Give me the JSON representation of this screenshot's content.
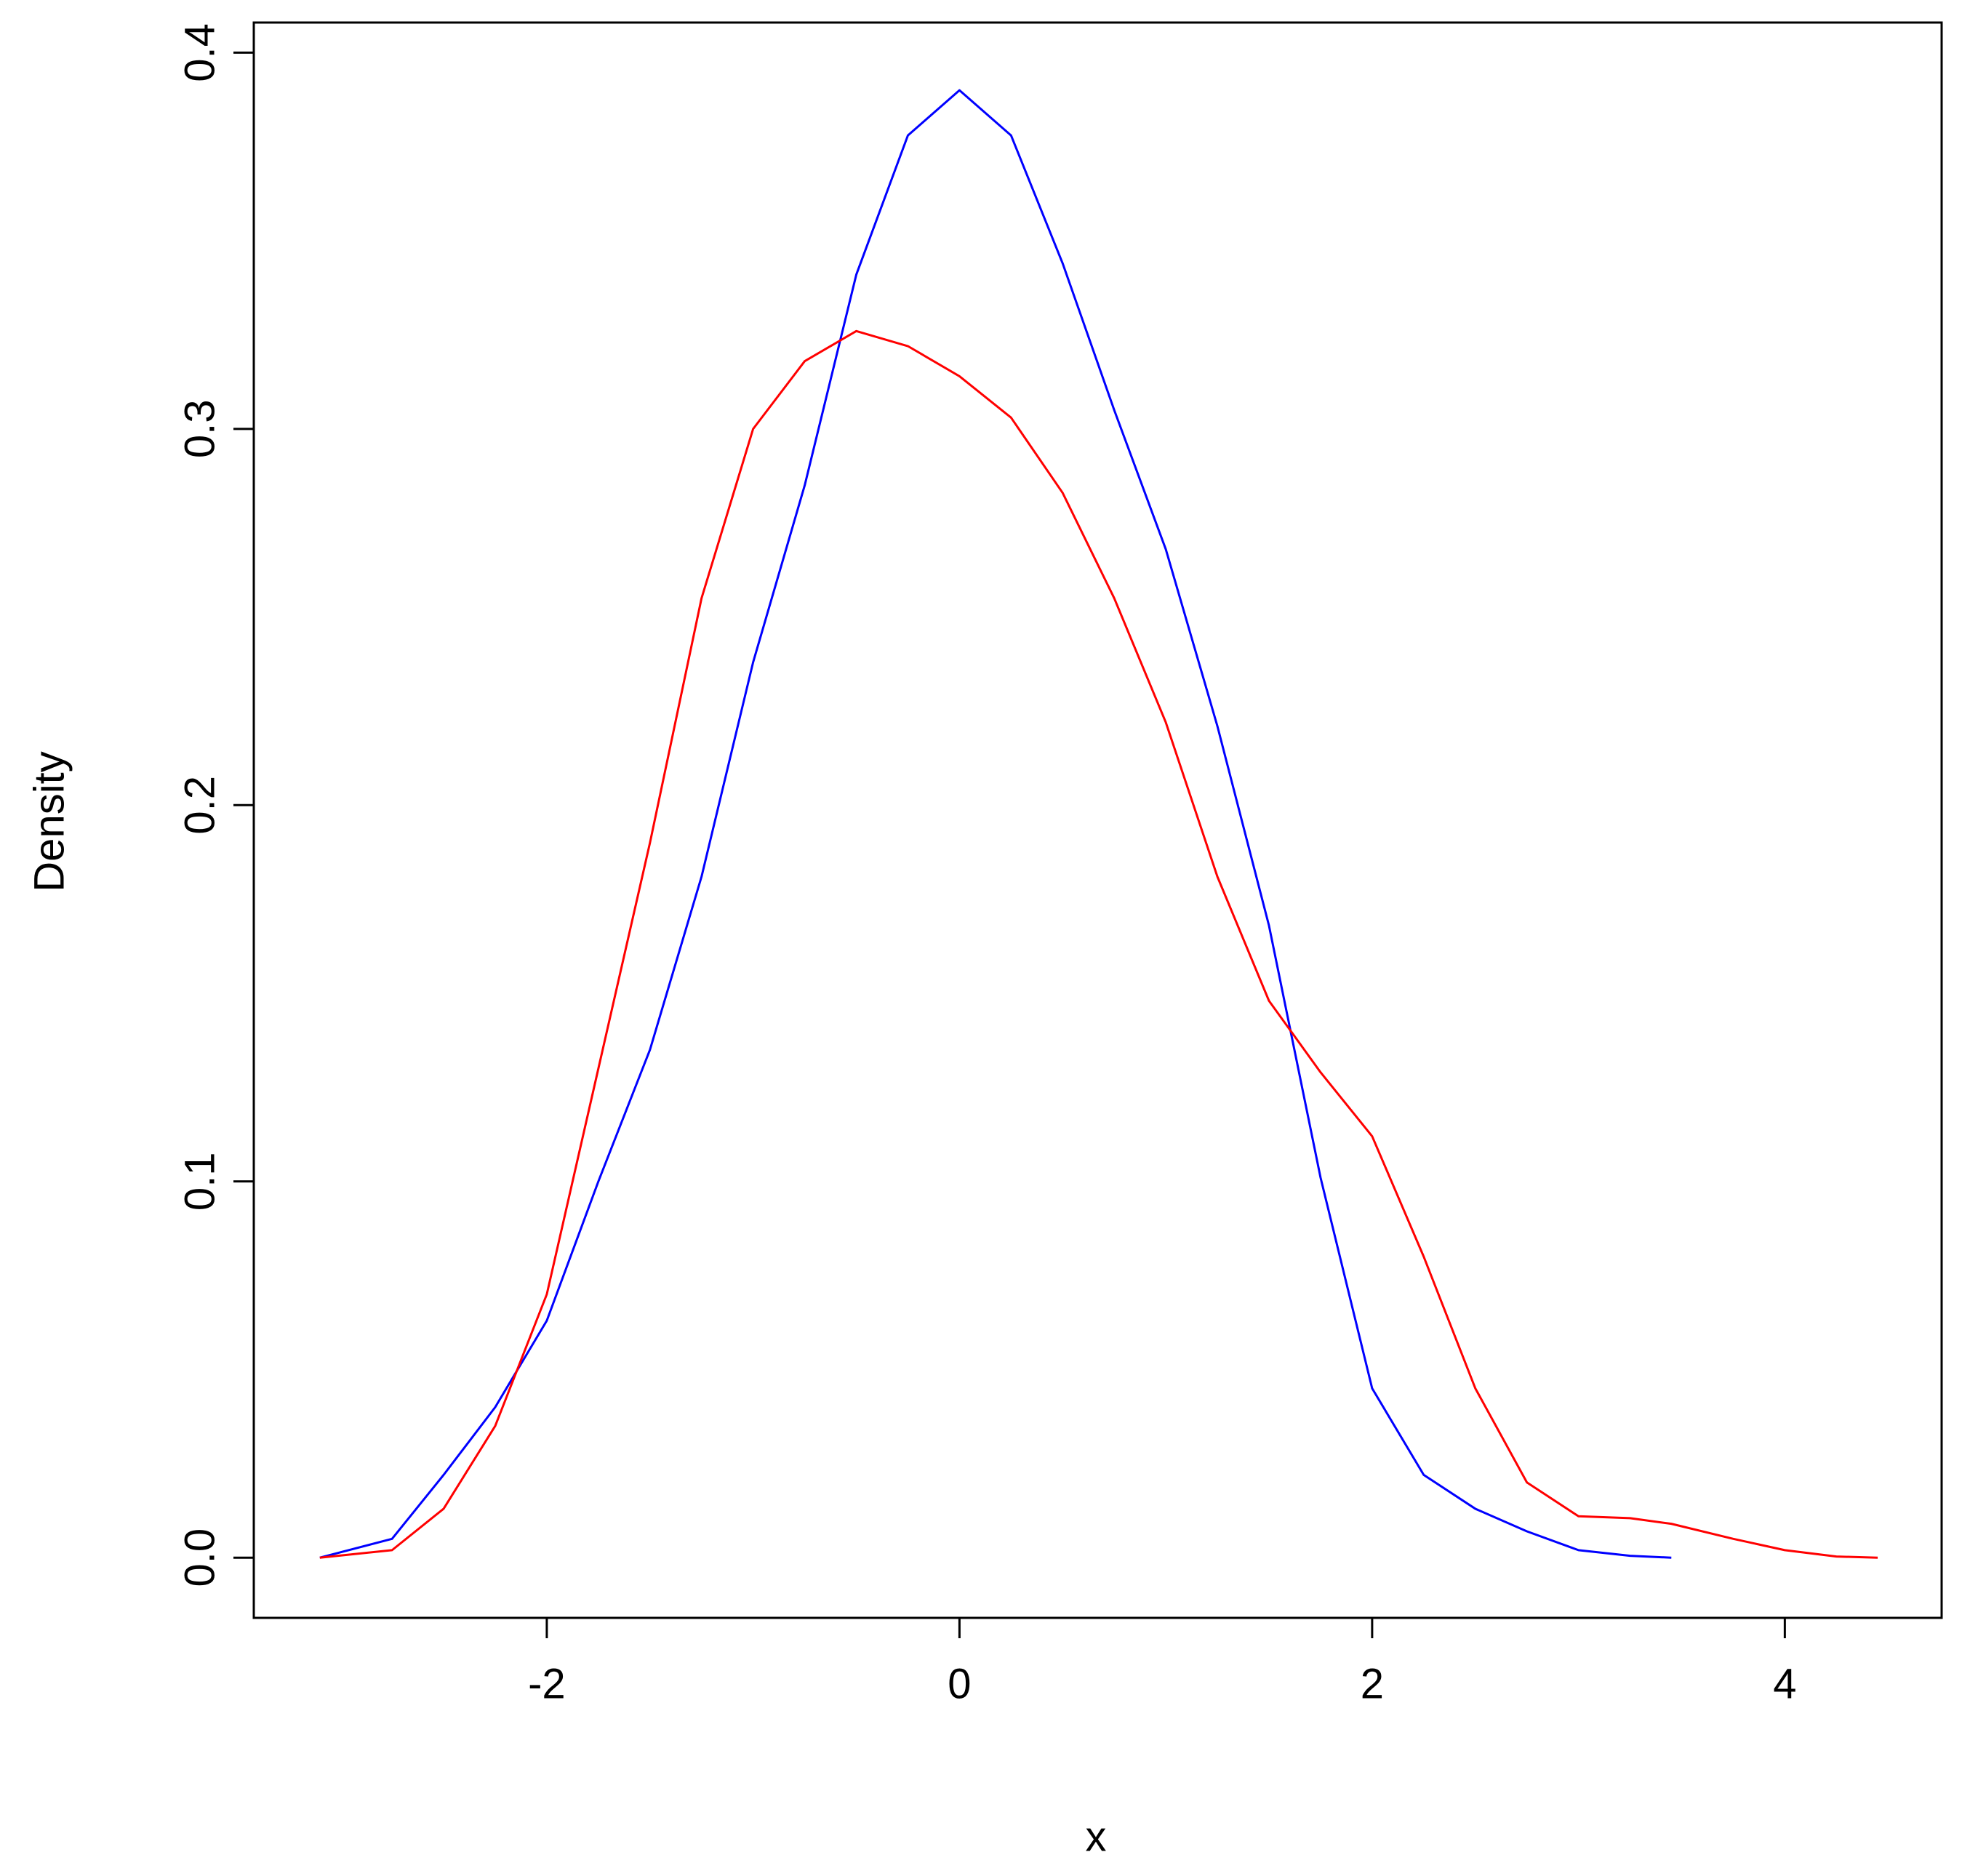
{
  "chart_data": {
    "type": "line",
    "xlabel": "x",
    "ylabel": "Density",
    "x": [
      -3.1,
      -2.75,
      -2.5,
      -2.25,
      -2,
      -1.75,
      -1.5,
      -1.25,
      -1,
      -0.75,
      -0.5,
      -0.25,
      0,
      0.25,
      0.5,
      0.75,
      1,
      1.25,
      1.5,
      1.75,
      2,
      2.25,
      2.5,
      2.75,
      3,
      3.25,
      3.45,
      3.75,
      4,
      4.25,
      4.45
    ],
    "series": [
      {
        "color": "#0000ff",
        "values": [
          0,
          0.005,
          0.022,
          0.04,
          0.063,
          0.1,
          0.135,
          0.181,
          0.238,
          0.285,
          0.341,
          0.378,
          0.39,
          0.378,
          0.344,
          0.305,
          0.268,
          0.221,
          0.168,
          0.101,
          0.045,
          0.022,
          0.013,
          0.007,
          0.002,
          0.0005,
          0,
          null,
          null,
          null,
          null
        ]
      },
      {
        "color": "#ff0000",
        "values": [
          0,
          0.002,
          0.013,
          0.035,
          0.07,
          0.13,
          0.19,
          0.255,
          0.3,
          0.318,
          0.326,
          0.322,
          0.314,
          0.303,
          0.283,
          0.255,
          0.222,
          0.181,
          0.148,
          0.129,
          0.112,
          0.08,
          0.045,
          0.02,
          0.011,
          0.0105,
          0.009,
          0.005,
          0.002,
          0.0003,
          0
        ]
      }
    ],
    "xlim": [
      -3.42,
      4.76
    ],
    "ylim": [
      -0.016,
      0.408
    ],
    "xticks": [
      -2,
      0,
      2,
      4
    ],
    "yticks": [
      {
        "value": 0,
        "label": "0.0"
      },
      0.1,
      0.2,
      0.3,
      0.4
    ]
  }
}
